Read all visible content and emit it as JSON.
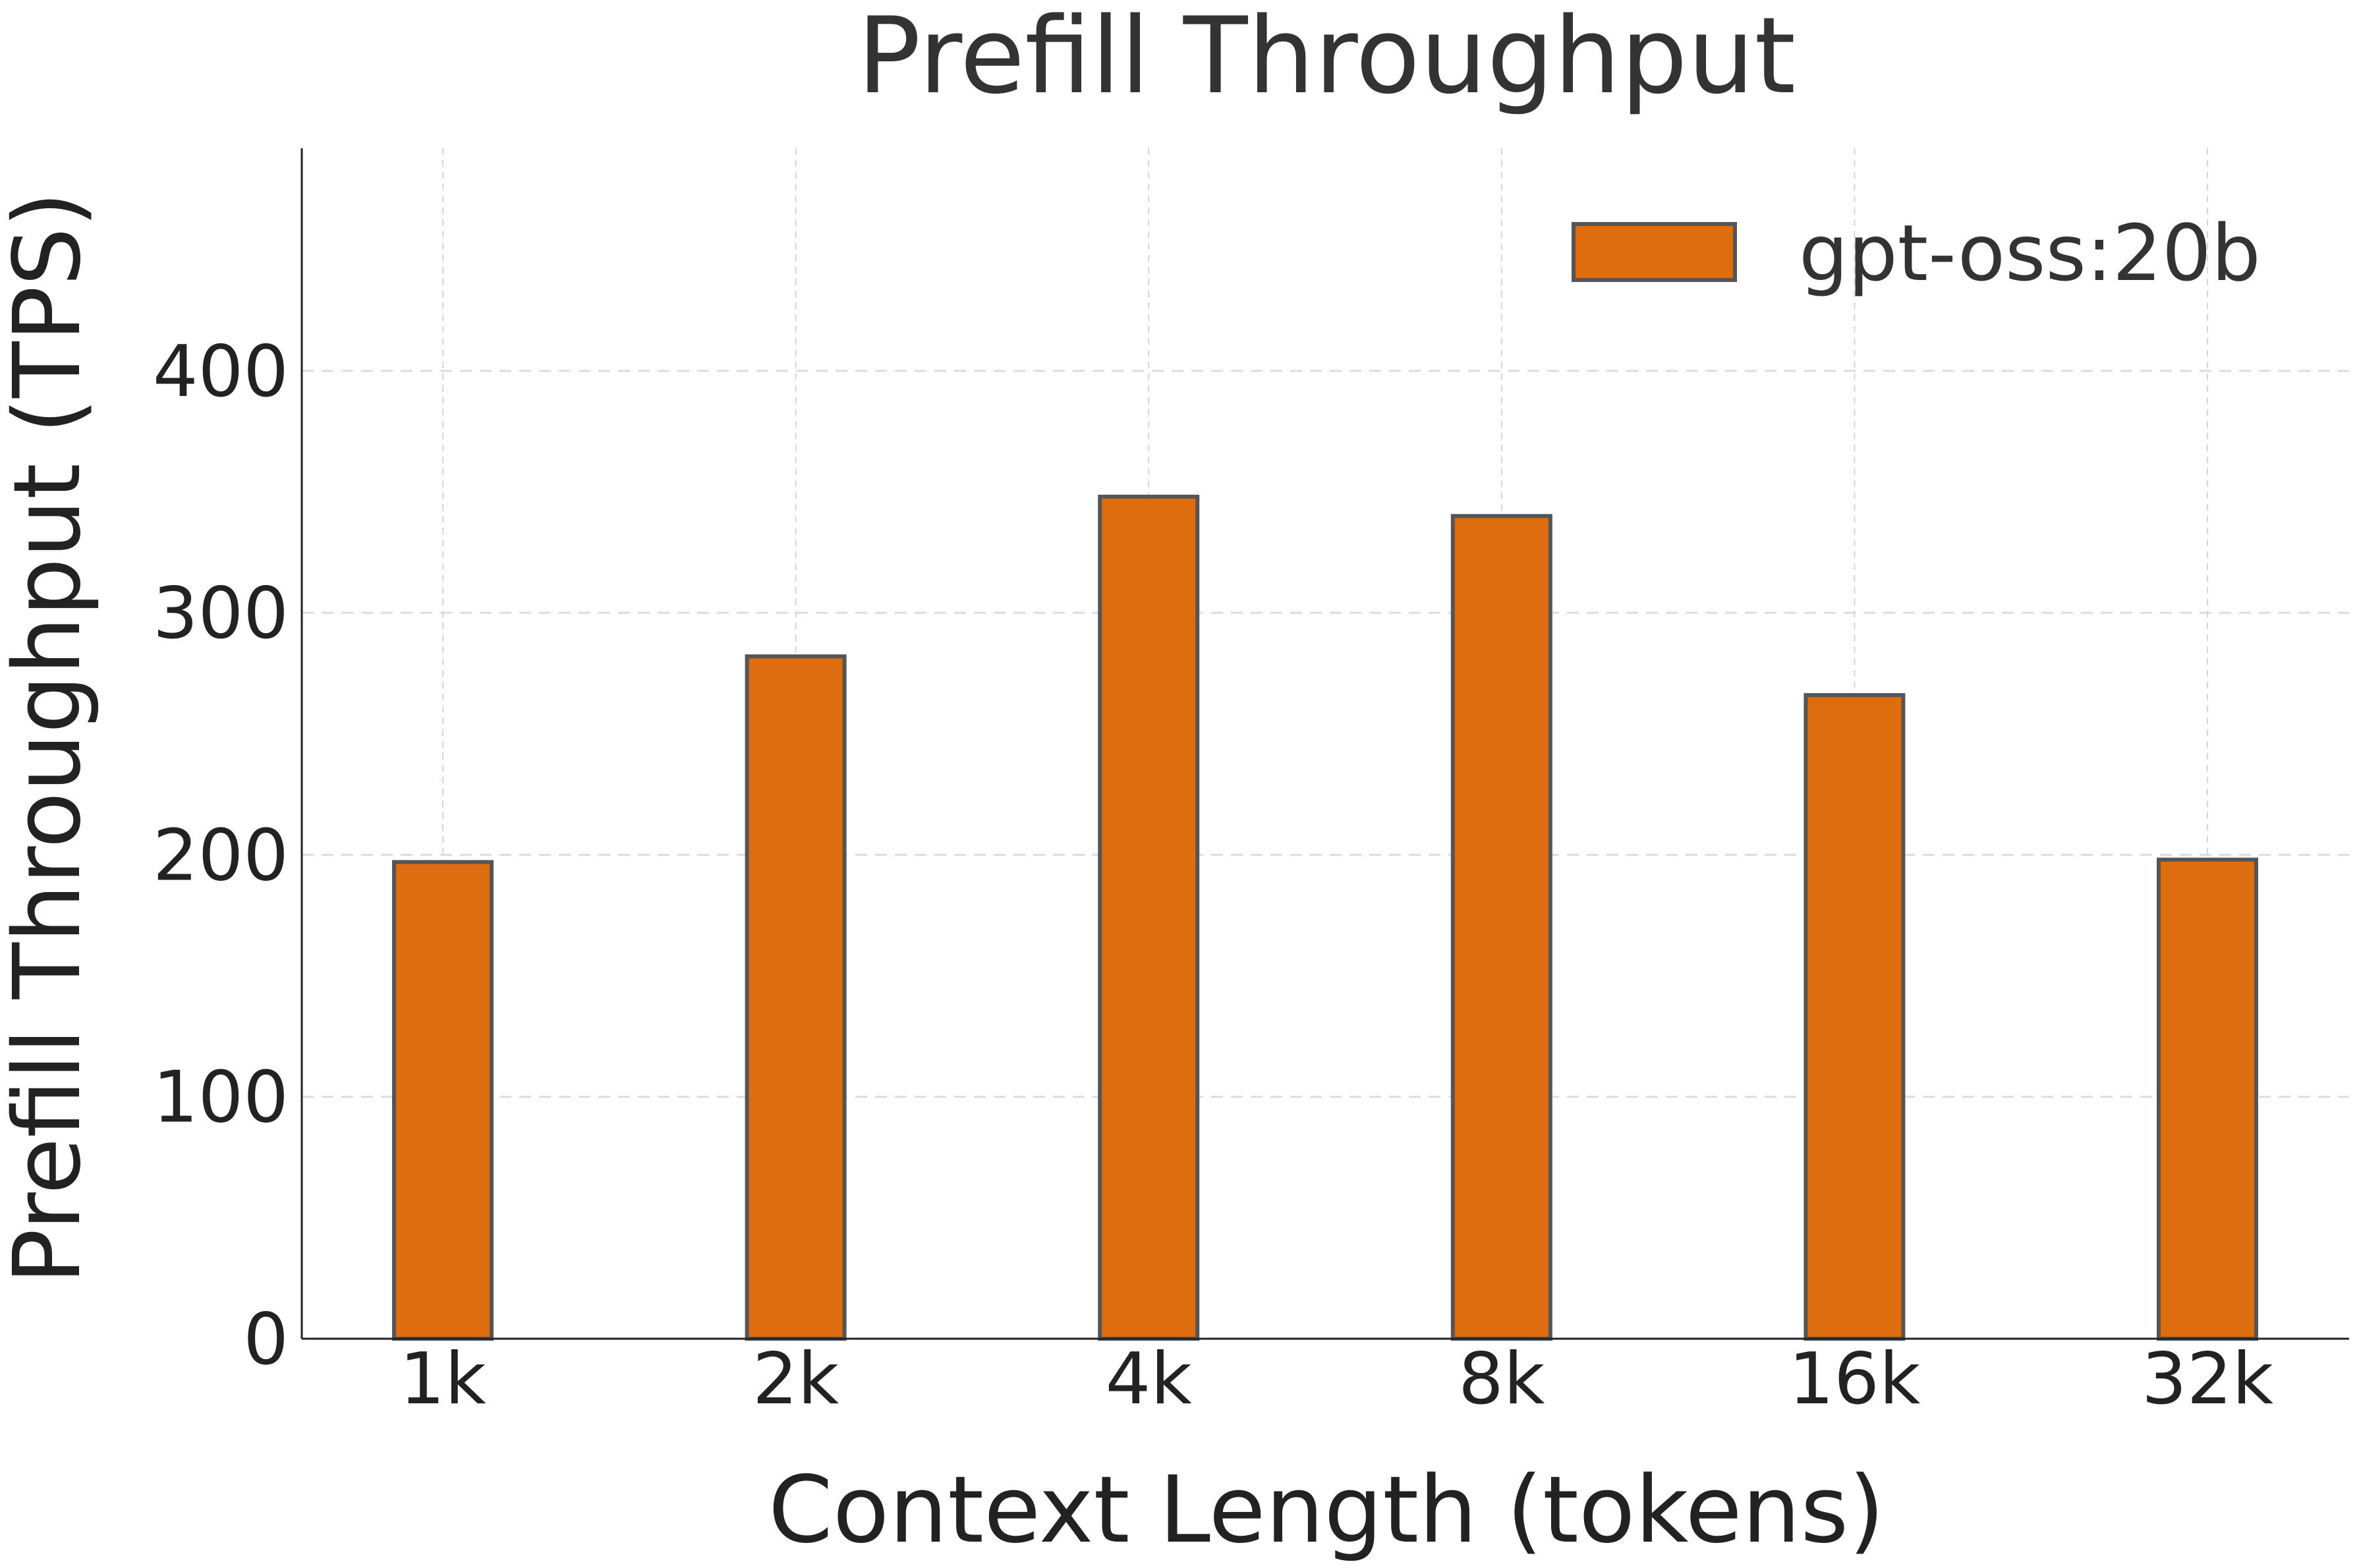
{
  "chart_data": {
    "type": "bar",
    "title": "Prefill Throughput",
    "xlabel": "Context Length (tokens)",
    "ylabel": "Prefill Throughput (TPS)",
    "categories": [
      "1k",
      "2k",
      "4k",
      "8k",
      "16k",
      "32k"
    ],
    "series": [
      {
        "name": "gpt-oss:20b",
        "values": [
          197,
          282,
          348,
          340,
          266,
          198
        ],
        "color": "#dd6d0f"
      }
    ],
    "ylim": [
      0,
      492
    ],
    "yticks": [
      0,
      100,
      200,
      300,
      400
    ],
    "grid": true,
    "legend_position": "top-right",
    "edge_color": "#555555"
  }
}
